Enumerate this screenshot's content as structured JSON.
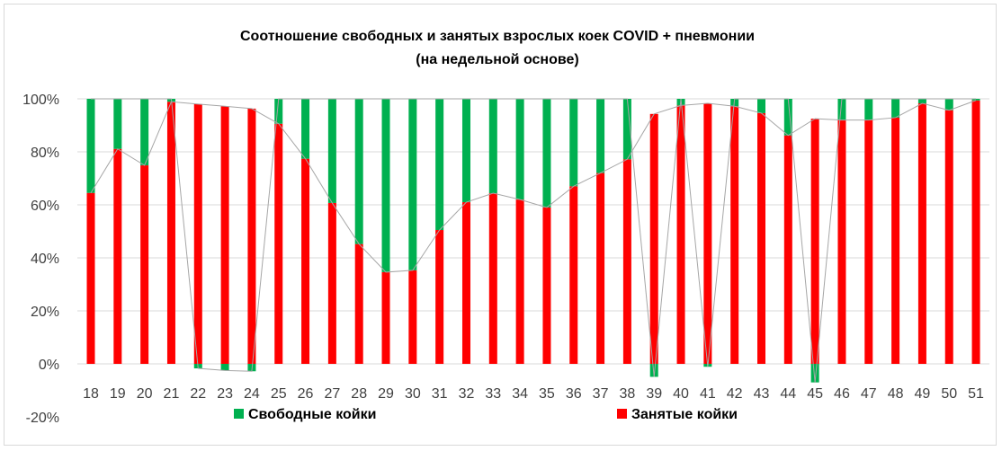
{
  "chart_data": {
    "type": "bar",
    "stacked": true,
    "title": "Соотношение свободных и занятых взрослых коек COVID + пневмонии",
    "subtitle": "(на недельной основе)",
    "xlabel": "",
    "ylabel": "",
    "ylim": [
      -20,
      100
    ],
    "yticks": [
      "-20%",
      "0%",
      "20%",
      "40%",
      "60%",
      "80%",
      "100%"
    ],
    "ytick_values": [
      -20,
      0,
      20,
      40,
      60,
      80,
      100
    ],
    "grid": true,
    "legend_position": "bottom",
    "categories": [
      "18",
      "19",
      "20",
      "21",
      "22",
      "23",
      "24",
      "25",
      "26",
      "27",
      "28",
      "29",
      "30",
      "31",
      "32",
      "33",
      "34",
      "35",
      "36",
      "37",
      "38",
      "39",
      "40",
      "41",
      "42",
      "43",
      "44",
      "45",
      "46",
      "47",
      "48",
      "49",
      "50",
      "51"
    ],
    "series": [
      {
        "name": "Занятые койки",
        "color": "#ff0000",
        "values": [
          64.5,
          81.1,
          74.9,
          98.9,
          98.0,
          97.2,
          96.3,
          90.6,
          77.4,
          60.7,
          45.2,
          34.6,
          35.3,
          50.5,
          61,
          64.4,
          62,
          59,
          67,
          72,
          77.2,
          94.3,
          97.5,
          98.3,
          97.2,
          94.6,
          86.2,
          92.5,
          92,
          92,
          92.9,
          98.3,
          95.7,
          99.4
        ]
      },
      {
        "name": "Свободные койки",
        "color": "#00b050",
        "values": [
          35.5,
          18.9,
          25.1,
          1.1,
          -1.7,
          -2.5,
          -2.8,
          9.4,
          22.6,
          39.3,
          54.8,
          65.4,
          64.7,
          49.5,
          39,
          35.6,
          38,
          41,
          33,
          28,
          22.8,
          -4.9,
          2.5,
          -1.1,
          2.8,
          5.4,
          13.8,
          -7.0,
          8,
          8,
          7.1,
          1.7,
          4.3,
          0.6
        ]
      }
    ]
  }
}
